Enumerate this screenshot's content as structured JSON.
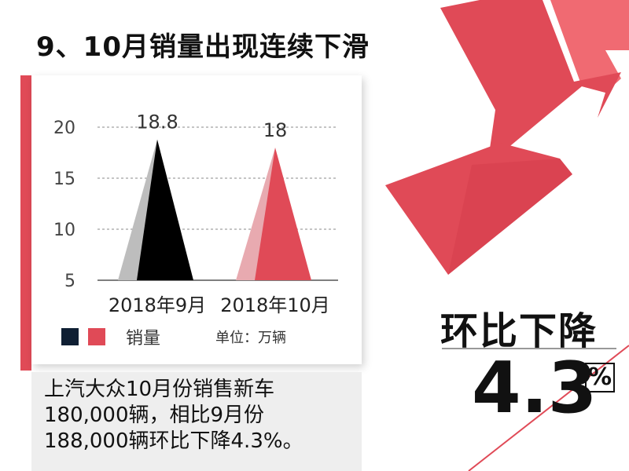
{
  "title": "9、10月销量出现连续下滑",
  "chart_data": {
    "type": "bar",
    "categories": [
      "2018年9月",
      "2018年10月"
    ],
    "series": [
      {
        "name": "销量",
        "values": [
          18.8,
          18
        ]
      }
    ],
    "data_labels": [
      "18.8",
      "18"
    ],
    "yticks": [
      "20",
      "15",
      "10",
      "5"
    ],
    "ytick_values": [
      20,
      15,
      10,
      5
    ],
    "ylim": [
      5,
      20
    ],
    "legend_label": "销量",
    "unit": "单位：万辆",
    "colors": {
      "bar1_dark": "#000000",
      "bar1_light": "#bdbdbd",
      "bar2_dark": "#e04a57",
      "bar2_light": "#e8aab0",
      "legend_swatch_1": "#0f1f33",
      "legend_swatch_2": "#e04a57"
    }
  },
  "caption": [
    "上汽大众10月份销售新车",
    "180,000辆，相比9月份",
    "188,000辆环比下降4.3%。"
  ],
  "highlight": {
    "label": "环比下降",
    "value": "4.3",
    "percent": "%"
  },
  "decor": {
    "arrow_color": "#e04a57",
    "arrow_tail_color": "#f06a72"
  }
}
